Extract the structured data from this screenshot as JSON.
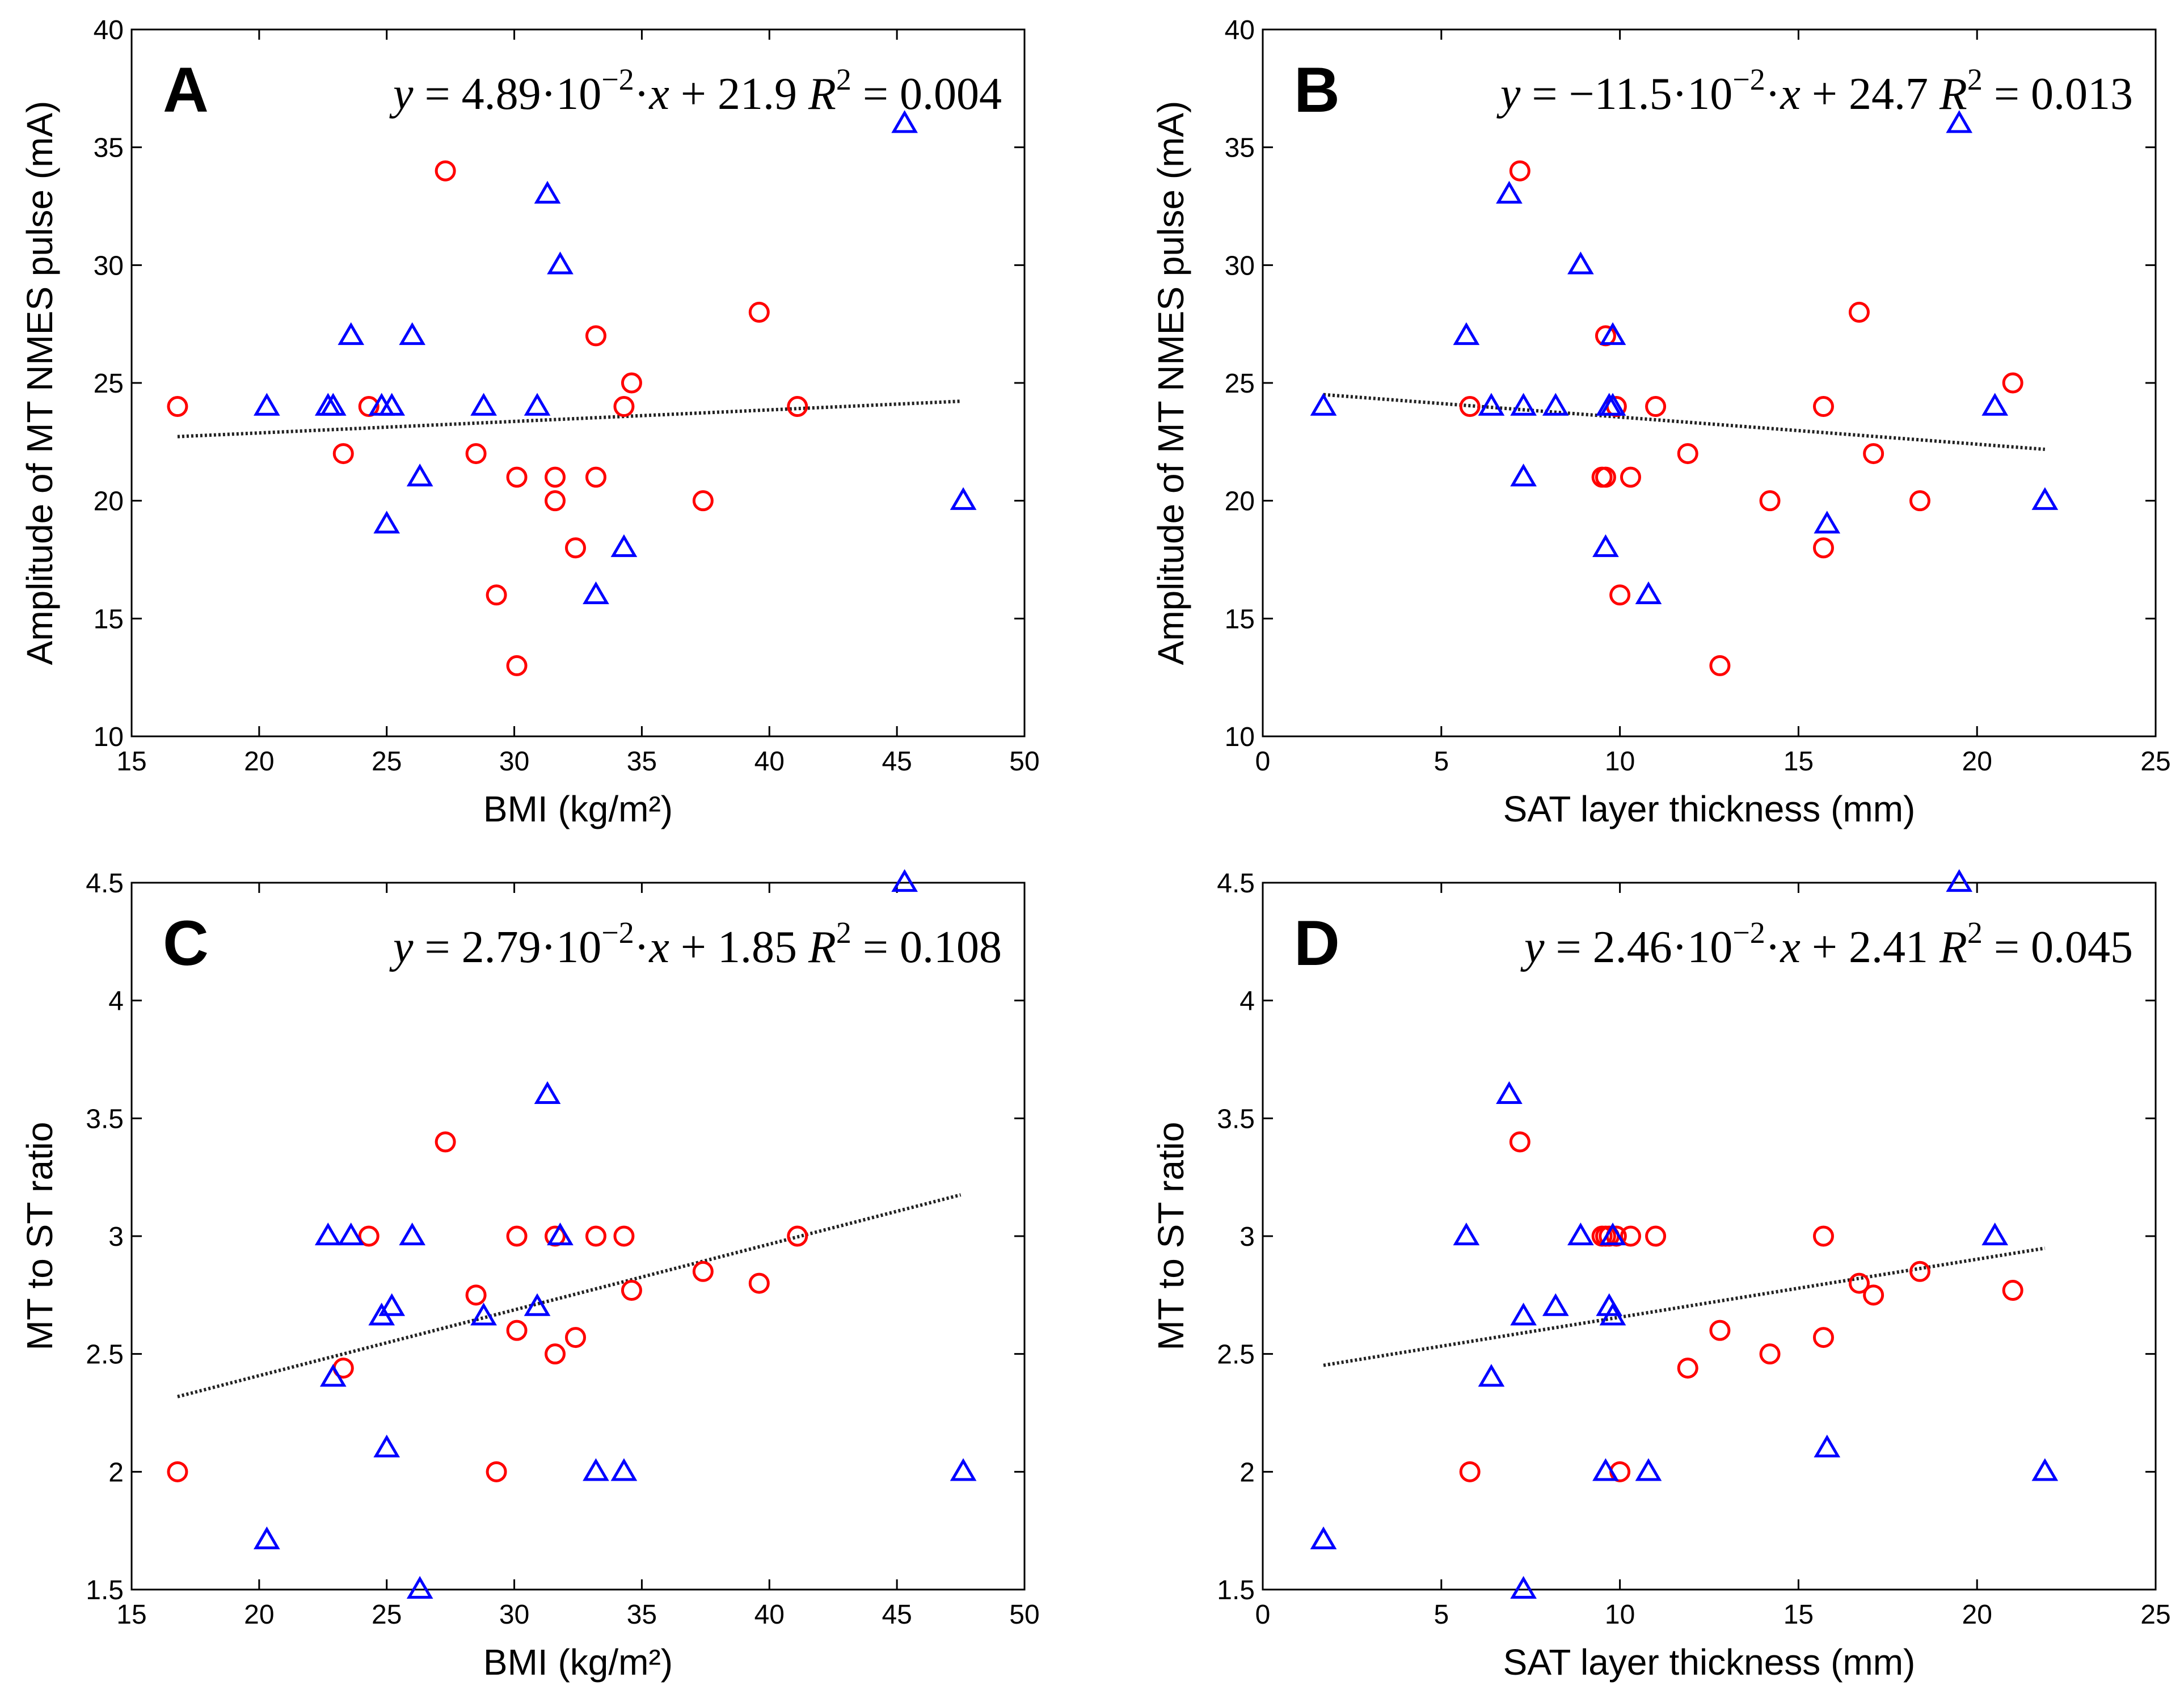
{
  "colors": {
    "circle": "#ff0000",
    "triangle": "#0000ff",
    "fit": "#222222"
  },
  "chart_data": [
    {
      "type": "scatter",
      "panel": "A",
      "xlabel": "BMI (kg/m²)",
      "ylabel": "Amplitude of MT NMES pulse (mA)",
      "xlim": [
        15,
        50
      ],
      "ylim": [
        10,
        40
      ],
      "xticks": [
        15,
        20,
        25,
        30,
        35,
        40,
        45,
        50
      ],
      "yticks": [
        10,
        15,
        20,
        25,
        30,
        35,
        40
      ],
      "equation": {
        "lhs": "y",
        "eq": " = 4.89·10",
        "exp": "−2",
        "mid": "·",
        "var": "x",
        "rest": " + 21.9",
        "r_label": "R",
        "r_exp": "2",
        "r_value": " = 0.004"
      },
      "fit": {
        "slope": 0.0489,
        "intercept": 21.9,
        "x_range": [
          16.8,
          47.5
        ]
      },
      "series": [
        {
          "name": "circles",
          "marker": "circle",
          "x": [
            16.8,
            23.3,
            24.3,
            27.3,
            28.5,
            29.3,
            30.1,
            30.1,
            31.6,
            31.6,
            32.4,
            33.2,
            33.2,
            34.3,
            34.6,
            37.4,
            39.6,
            41.1
          ],
          "y": [
            24,
            22,
            24,
            34,
            22,
            16,
            13,
            21,
            21,
            20,
            18,
            27,
            21,
            24,
            25,
            20,
            28,
            24
          ]
        },
        {
          "name": "triangles",
          "marker": "triangle",
          "x": [
            20.3,
            22.7,
            22.9,
            23.6,
            24.8,
            25.0,
            25.2,
            26.0,
            26.3,
            28.8,
            30.9,
            31.3,
            31.8,
            33.2,
            34.3,
            45.3,
            47.6
          ],
          "y": [
            24,
            24,
            24,
            27,
            24,
            19,
            24,
            27,
            21,
            24,
            24,
            33,
            30,
            16,
            18,
            36,
            20
          ]
        }
      ]
    },
    {
      "type": "scatter",
      "panel": "B",
      "xlabel": "SAT layer thickness (mm)",
      "ylabel": "Amplitude of MT NMES pulse (mA)",
      "xlim": [
        0,
        25
      ],
      "ylim": [
        10,
        40
      ],
      "xticks": [
        0,
        5,
        10,
        15,
        20,
        25
      ],
      "yticks": [
        10,
        15,
        20,
        25,
        30,
        35,
        40
      ],
      "equation": {
        "lhs": "y",
        "eq": " = −11.5·10",
        "exp": "−2",
        "mid": "·",
        "var": "x",
        "rest": " + 24.7",
        "r_label": "R",
        "r_exp": "2",
        "r_value": " = 0.013"
      },
      "fit": {
        "slope": -0.115,
        "intercept": 24.7,
        "x_range": [
          1.7,
          21.9
        ]
      },
      "series": [
        {
          "name": "circles",
          "marker": "circle",
          "x": [
            5.8,
            7.2,
            9.5,
            9.6,
            9.6,
            9.9,
            10.0,
            10.3,
            11.0,
            11.9,
            12.8,
            14.2,
            15.7,
            15.7,
            16.7,
            17.1,
            18.4,
            21.0
          ],
          "y": [
            24,
            34,
            21,
            27,
            21,
            24,
            16,
            21,
            24,
            22,
            13,
            20,
            24,
            18,
            28,
            22,
            20,
            25
          ]
        },
        {
          "name": "triangles",
          "marker": "triangle",
          "x": [
            1.7,
            5.7,
            6.4,
            6.9,
            7.3,
            7.3,
            8.2,
            8.9,
            9.6,
            9.7,
            9.8,
            9.8,
            10.8,
            15.8,
            19.5,
            20.5,
            21.9
          ],
          "y": [
            24,
            27,
            24,
            33,
            24,
            21,
            24,
            30,
            18,
            24,
            24,
            27,
            16,
            19,
            36,
            24,
            20
          ]
        }
      ]
    },
    {
      "type": "scatter",
      "panel": "C",
      "xlabel": "BMI (kg/m²)",
      "ylabel": "MT to ST ratio",
      "xlim": [
        15,
        50
      ],
      "ylim": [
        1.5,
        4.5
      ],
      "xticks": [
        15,
        20,
        25,
        30,
        35,
        40,
        45,
        50
      ],
      "yticks": [
        1.5,
        2,
        2.5,
        3,
        3.5,
        4,
        4.5
      ],
      "equation": {
        "lhs": "y",
        "eq": " = 2.79·10",
        "exp": "−2",
        "mid": "·",
        "var": "x",
        "rest": " + 1.85",
        "r_label": "R",
        "r_exp": "2",
        "r_value": " = 0.108"
      },
      "fit": {
        "slope": 0.0279,
        "intercept": 1.85,
        "x_range": [
          16.8,
          47.5
        ]
      },
      "series": [
        {
          "name": "circles",
          "marker": "circle",
          "x": [
            16.8,
            23.3,
            24.3,
            27.3,
            28.5,
            29.3,
            30.1,
            30.1,
            31.6,
            31.6,
            32.4,
            33.2,
            34.3,
            34.6,
            37.4,
            39.6,
            41.1
          ],
          "y": [
            2.0,
            2.44,
            3.0,
            3.4,
            2.75,
            2.0,
            2.6,
            3.0,
            3.0,
            2.5,
            2.57,
            3.0,
            3.0,
            2.77,
            2.85,
            2.8,
            3.0
          ]
        },
        {
          "name": "triangles",
          "marker": "triangle",
          "x": [
            20.3,
            22.7,
            22.9,
            23.6,
            24.8,
            25.0,
            25.2,
            26.0,
            26.3,
            28.8,
            30.9,
            31.3,
            31.8,
            33.2,
            34.3,
            45.3,
            47.6
          ],
          "y": [
            1.71,
            3.0,
            2.4,
            3.0,
            2.66,
            2.1,
            2.7,
            3.0,
            1.5,
            2.66,
            2.7,
            3.6,
            3.0,
            2.0,
            2.0,
            4.5,
            2.0
          ]
        }
      ]
    },
    {
      "type": "scatter",
      "panel": "D",
      "xlabel": "SAT layer thickness (mm)",
      "ylabel": "MT to ST ratio",
      "xlim": [
        0,
        25
      ],
      "ylim": [
        1.5,
        4.5
      ],
      "xticks": [
        0,
        5,
        10,
        15,
        20,
        25
      ],
      "yticks": [
        1.5,
        2,
        2.5,
        3,
        3.5,
        4,
        4.5
      ],
      "equation": {
        "lhs": "y",
        "eq": " = 2.46·10",
        "exp": "−2",
        "mid": "·",
        "var": "x",
        "rest": " + 2.41",
        "r_label": "R",
        "r_exp": "2",
        "r_value": " = 0.045"
      },
      "fit": {
        "slope": 0.0246,
        "intercept": 2.41,
        "x_range": [
          1.7,
          21.9
        ]
      },
      "series": [
        {
          "name": "circles",
          "marker": "circle",
          "x": [
            5.8,
            7.2,
            9.5,
            9.6,
            9.7,
            9.9,
            10.0,
            10.3,
            11.0,
            11.9,
            12.8,
            14.2,
            15.7,
            15.7,
            16.7,
            17.1,
            18.4,
            21.0
          ],
          "y": [
            2.0,
            3.4,
            3.0,
            3.0,
            3.0,
            3.0,
            2.0,
            3.0,
            3.0,
            2.44,
            2.6,
            2.5,
            3.0,
            2.57,
            2.8,
            2.75,
            2.85,
            2.77
          ]
        },
        {
          "name": "triangles",
          "marker": "triangle",
          "x": [
            1.7,
            5.7,
            6.4,
            6.9,
            7.3,
            7.3,
            8.2,
            8.9,
            9.6,
            9.7,
            9.8,
            9.8,
            10.8,
            15.8,
            19.5,
            20.5,
            21.9
          ],
          "y": [
            1.71,
            3.0,
            2.4,
            3.6,
            2.66,
            1.5,
            2.7,
            3.0,
            2.0,
            2.7,
            3.0,
            2.66,
            2.0,
            2.1,
            4.5,
            3.0,
            2.0
          ]
        }
      ]
    }
  ]
}
